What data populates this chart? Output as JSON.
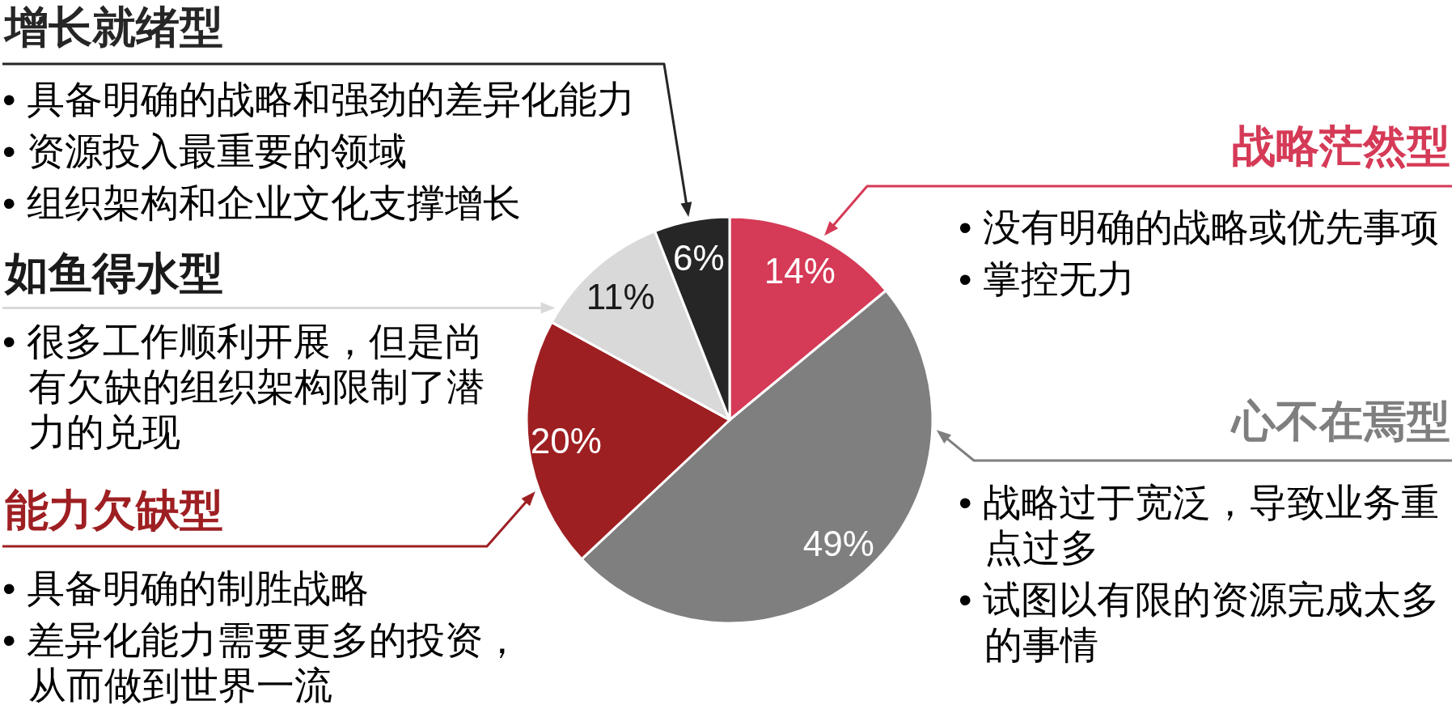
{
  "chart_data": {
    "type": "pie",
    "categories": [
      "战略茫然型",
      "心不在焉型",
      "能力欠缺型",
      "如鱼得水型",
      "增长就绪型"
    ],
    "values": [
      14,
      49,
      20,
      11,
      6
    ],
    "colors": [
      "#d53a56",
      "#7f7f7f",
      "#9e1f22",
      "#d9d9d9",
      "#262626"
    ],
    "value_labels": [
      "14%",
      "49%",
      "20%",
      "11%",
      "6%"
    ],
    "annotations": [
      "• 没有明确的战略或优先事项\n• 掌控无力",
      "• 战略过于宽泛，导致业务重点过多\n• 试图以有限的资源完成太多的事情",
      "• 具备明确的制胜战略\n• 差异化能力需要更多的投资，从而做到世界一流",
      "• 很多工作顺利开展，但是尚有欠缺的组织架构限制了潜力的兑现",
      "• 具备明确的战略和强劲的差异化能力\n• 资源投入最重要的领域\n• 组织架构和企业文化支撑增长"
    ]
  }
}
